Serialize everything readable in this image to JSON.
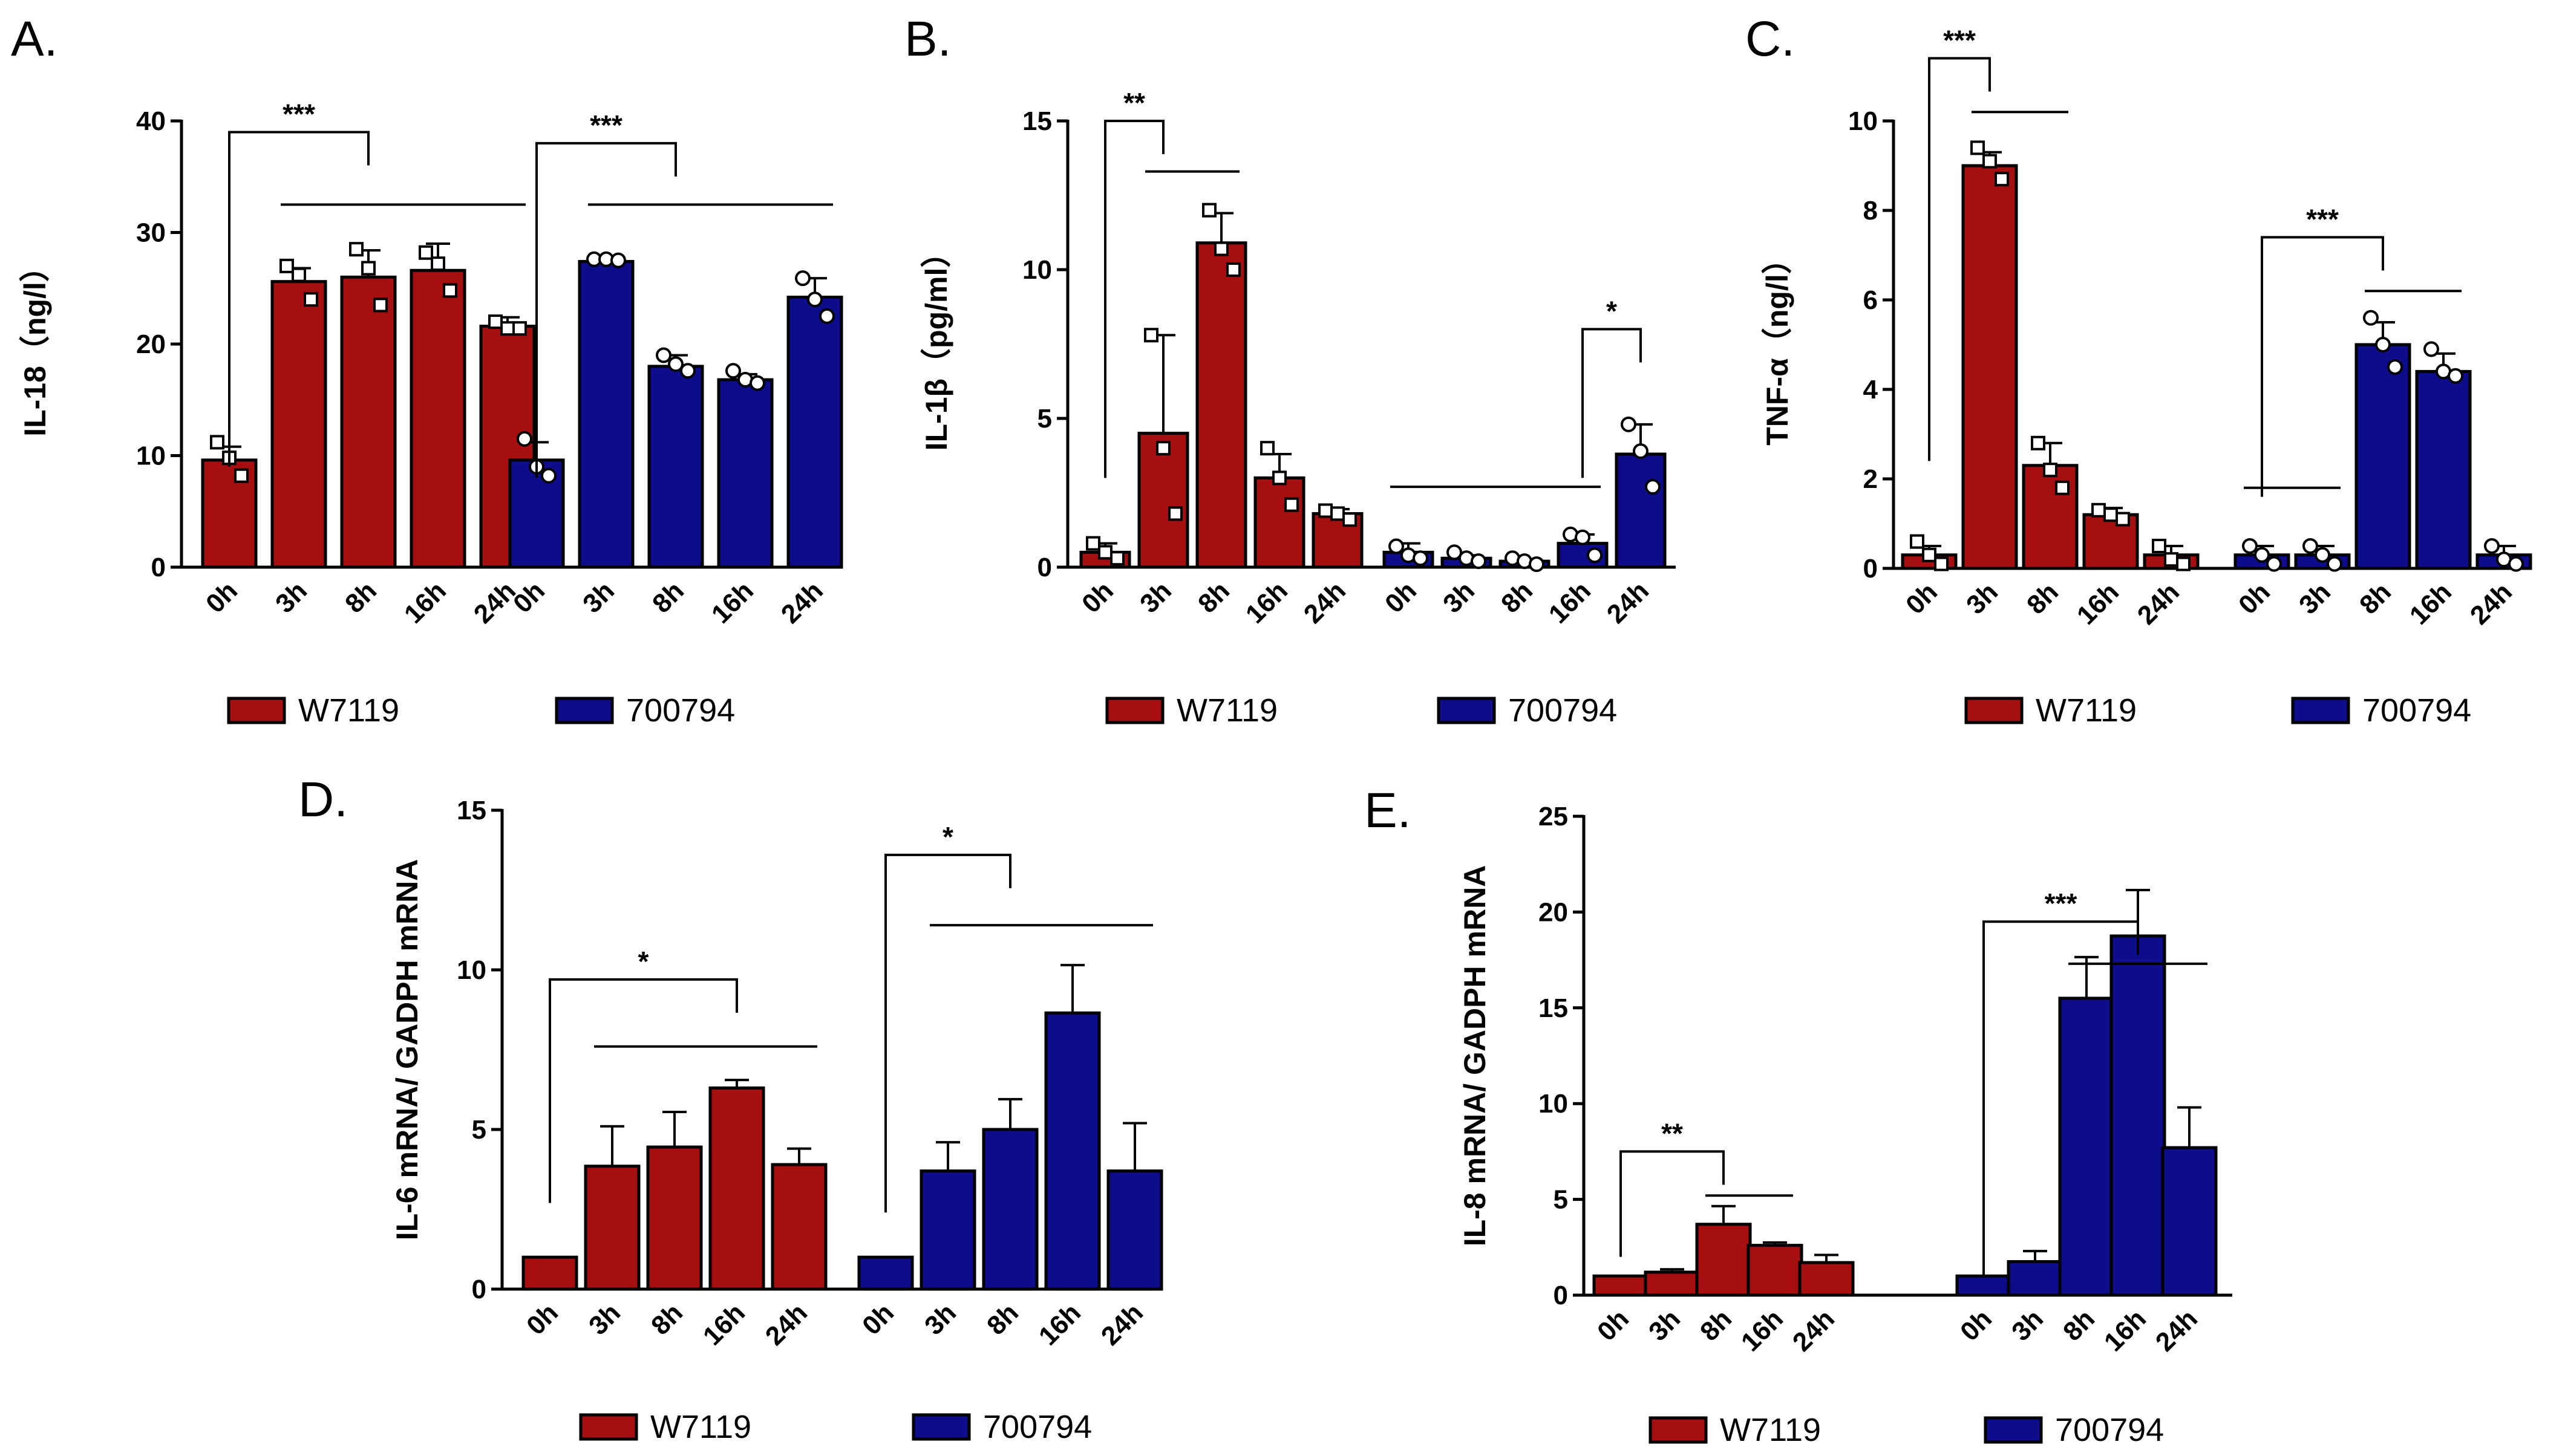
{
  "colors": {
    "W7119": "#a50f0f",
    "700794": "#0d0d8c"
  },
  "chart_data": [
    {
      "id": "A",
      "panel_label": "A.",
      "type": "bar",
      "ylabel": "IL-18（ng/l）",
      "ylim": [
        0,
        40
      ],
      "yticks": [
        0,
        10,
        20,
        30,
        40
      ],
      "categories": [
        "0h",
        "3h",
        "8h",
        "16h",
        "24h"
      ],
      "series": [
        {
          "name": "W7119",
          "values": [
            9.6,
            25.6,
            26.0,
            26.6,
            21.6
          ],
          "errors": [
            1.2,
            1.2,
            2.4,
            2.4,
            0.8
          ],
          "points": [
            [
              11.2,
              9.8,
              8.2
            ],
            [
              27.0,
              26.2,
              24.0
            ],
            [
              28.5,
              26.8,
              23.5
            ],
            [
              28.2,
              27.2,
              24.8
            ],
            [
              22.0,
              21.4,
              21.4
            ]
          ]
        },
        {
          "name": "700794",
          "values": [
            9.6,
            27.4,
            18.0,
            16.8,
            24.2
          ],
          "errors": [
            1.6,
            0.4,
            1.0,
            0.5,
            1.7
          ],
          "points": [
            [
              11.5,
              9.0,
              8.2
            ],
            [
              27.6,
              27.6,
              27.5
            ],
            [
              19.0,
              18.2,
              17.6
            ],
            [
              17.6,
              16.8,
              16.5
            ],
            [
              25.9,
              24.0,
              22.5
            ]
          ]
        }
      ],
      "significance": [
        {
          "label": "***",
          "series": "W7119",
          "from": 0,
          "to": 2,
          "level": 39,
          "drop": 30,
          "line_from": 1,
          "line_to": 4,
          "line_level": 32.5
        },
        {
          "label": "***",
          "series": "700794",
          "from": 0,
          "to": 2,
          "level": 38,
          "drop": 30,
          "line_from": 1,
          "line_to": 4,
          "line_level": 32.5
        }
      ]
    },
    {
      "id": "B",
      "panel_label": "B.",
      "type": "bar",
      "ylabel": "IL-1β（pg/ml）",
      "ylim": [
        0,
        15
      ],
      "yticks": [
        0,
        5,
        10,
        15
      ],
      "categories": [
        "0h",
        "3h",
        "8h",
        "16h",
        "24h"
      ],
      "series": [
        {
          "name": "W7119",
          "values": [
            0.5,
            4.5,
            10.9,
            3.0,
            1.8
          ],
          "errors": [
            0.3,
            3.3,
            1.0,
            0.8,
            0.15
          ],
          "points": [
            [
              0.8,
              0.5,
              0.3
            ],
            [
              7.8,
              4.0,
              1.8
            ],
            [
              12.0,
              10.7,
              10.0
            ],
            [
              4.0,
              3.0,
              2.1
            ],
            [
              1.9,
              1.8,
              1.6
            ]
          ]
        },
        {
          "name": "700794",
          "values": [
            0.5,
            0.3,
            0.2,
            0.8,
            3.8
          ],
          "errors": [
            0.3,
            0.1,
            0.05,
            0.3,
            1.0
          ],
          "points": [
            [
              0.7,
              0.4,
              0.3
            ],
            [
              0.5,
              0.3,
              0.2
            ],
            [
              0.3,
              0.2,
              0.1
            ],
            [
              1.1,
              1.0,
              0.4
            ],
            [
              4.8,
              3.9,
              2.7
            ]
          ]
        }
      ],
      "significance": [
        {
          "label": "**",
          "series": "W7119",
          "from": 0,
          "to": 1,
          "level": 15,
          "drop": 12,
          "line_from": 1,
          "line_to": 2,
          "line_level": 13.3
        },
        {
          "label": "*",
          "series": "700794",
          "from": 3,
          "to": 4,
          "level": 8,
          "drop": 5,
          "line_from": 0,
          "line_to": 3,
          "line_level": 2.7
        }
      ]
    },
    {
      "id": "C",
      "panel_label": "C.",
      "type": "bar",
      "ylabel": "TNF-α（ng/l）",
      "ylim": [
        0,
        10
      ],
      "yticks": [
        0,
        2,
        4,
        6,
        8,
        10
      ],
      "categories": [
        "0h",
        "3h",
        "8h",
        "16h",
        "24h"
      ],
      "series": [
        {
          "name": "W7119",
          "values": [
            0.3,
            9.0,
            2.3,
            1.2,
            0.3
          ],
          "errors": [
            0.2,
            0.3,
            0.5,
            0.15,
            0.2
          ],
          "points": [
            [
              0.6,
              0.3,
              0.1
            ],
            [
              9.4,
              9.1,
              8.7
            ],
            [
              2.8,
              2.2,
              1.8
            ],
            [
              1.3,
              1.2,
              1.1
            ],
            [
              0.5,
              0.2,
              0.1
            ]
          ]
        },
        {
          "name": "700794",
          "values": [
            0.3,
            0.3,
            5.0,
            4.4,
            0.3
          ],
          "errors": [
            0.2,
            0.2,
            0.5,
            0.4,
            0.2
          ],
          "points": [
            [
              0.5,
              0.3,
              0.1
            ],
            [
              0.5,
              0.3,
              0.1
            ],
            [
              5.6,
              5.0,
              4.5
            ],
            [
              4.9,
              4.4,
              4.3
            ],
            [
              0.5,
              0.2,
              0.1
            ]
          ]
        }
      ],
      "significance": [
        {
          "label": "***",
          "series": "W7119",
          "from": 0,
          "to": 1,
          "level": 11.4,
          "drop": 9,
          "line_from": 1,
          "line_to": 2,
          "line_level": 10.2
        },
        {
          "label": "***",
          "series": "700794",
          "from": 0,
          "to": 2,
          "level": 7.4,
          "drop": 5.8,
          "line_from": 2,
          "line_to": 3,
          "line_level": 6.2
        },
        {
          "label": "",
          "series": "700794",
          "from": 0,
          "to": 0,
          "level": 0,
          "drop": 0,
          "line_from": 0,
          "line_to": 1,
          "line_level": 1.8
        }
      ]
    },
    {
      "id": "D",
      "panel_label": "D.",
      "type": "bar",
      "ylabel": "IL-6 mRNA/ GADPH mRNA",
      "ylim": [
        0,
        15
      ],
      "yticks": [
        0,
        5,
        10,
        15
      ],
      "categories": [
        "0h",
        "3h",
        "8h",
        "16h",
        "24h"
      ],
      "series": [
        {
          "name": "W7119",
          "values": [
            1.0,
            3.85,
            4.45,
            6.3,
            3.9
          ],
          "errors": [
            0,
            1.25,
            1.1,
            0.25,
            0.5
          ]
        },
        {
          "name": "700794",
          "values": [
            1.0,
            3.7,
            5.0,
            8.65,
            3.7
          ],
          "errors": [
            0,
            0.9,
            0.95,
            1.5,
            1.5
          ]
        }
      ],
      "significance": [
        {
          "label": "*",
          "series": "W7119",
          "from": 0,
          "to": 3,
          "level": 9.7,
          "drop": 7,
          "line_from": 1,
          "line_to": 4,
          "line_level": 7.6
        },
        {
          "label": "*",
          "series": "700794",
          "from": 0,
          "to": 2,
          "level": 13.6,
          "drop": 11.2,
          "line_from": 1,
          "line_to": 4,
          "line_level": 11.4
        }
      ]
    },
    {
      "id": "E",
      "panel_label": "E.",
      "type": "bar",
      "ylabel": "IL-8 mRNA/ GADPH mRNA",
      "ylim": [
        0,
        25
      ],
      "yticks": [
        0,
        5,
        10,
        15,
        20,
        25
      ],
      "categories": [
        "0h",
        "3h",
        "8h",
        "16h",
        "24h"
      ],
      "series": [
        {
          "name": "W7119",
          "values": [
            1.0,
            1.2,
            3.7,
            2.6,
            1.7
          ],
          "errors": [
            0,
            0.15,
            0.95,
            0.15,
            0.4
          ]
        },
        {
          "name": "700794",
          "values": [
            1.0,
            1.75,
            15.5,
            18.75,
            7.7
          ],
          "errors": [
            0,
            0.55,
            2.15,
            2.4,
            2.1
          ]
        }
      ],
      "significance": [
        {
          "label": "**",
          "series": "W7119",
          "from": 0,
          "to": 2,
          "level": 7.5,
          "drop": 5.5,
          "line_from": 2,
          "line_to": 3,
          "line_level": 5.2
        },
        {
          "label": "***",
          "series": "700794",
          "from": 0,
          "to": 3,
          "level": 19.5,
          "drop": 18.5,
          "line_from": 2,
          "line_to": 4,
          "line_level": 17.3
        }
      ]
    }
  ],
  "legend": {
    "items": [
      "W7119",
      "700794"
    ]
  }
}
